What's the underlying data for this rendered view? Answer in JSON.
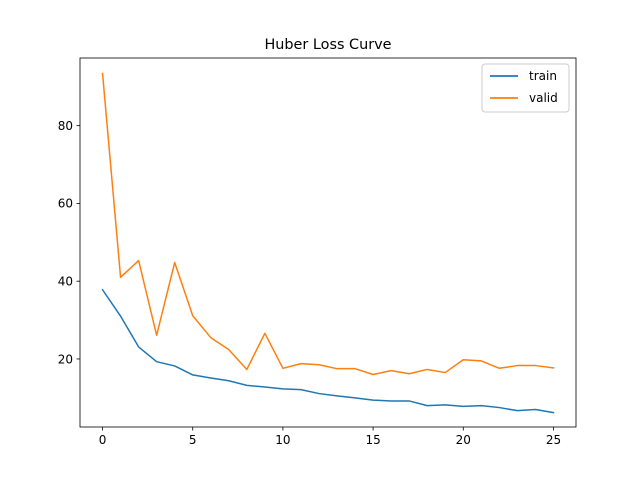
{
  "chart_data": {
    "type": "line",
    "title": "Huber Loss Curve",
    "xlabel": "",
    "ylabel": "",
    "xlim": [
      -1.25,
      26.25
    ],
    "ylim": [
      2.5,
      97.4
    ],
    "xticks": [
      0,
      5,
      10,
      15,
      20,
      25
    ],
    "yticks": [
      20,
      40,
      60,
      80
    ],
    "grid": false,
    "legend_position": "top-right",
    "x": [
      0,
      1,
      2,
      3,
      4,
      5,
      6,
      7,
      8,
      9,
      10,
      11,
      12,
      13,
      14,
      15,
      16,
      17,
      18,
      19,
      20,
      21,
      22,
      23,
      24,
      25
    ],
    "series": [
      {
        "name": "train",
        "color": "#1f77b4",
        "values": [
          37.8,
          31.0,
          23.1,
          19.3,
          18.2,
          15.9,
          15.1,
          14.4,
          13.2,
          12.8,
          12.3,
          12.1,
          11.1,
          10.5,
          10.0,
          9.4,
          9.2,
          9.2,
          8.0,
          8.2,
          7.8,
          8.0,
          7.5,
          6.7,
          7.0,
          6.2
        ]
      },
      {
        "name": "valid",
        "color": "#ff7f0e",
        "values": [
          93.4,
          41.0,
          45.3,
          26.1,
          44.8,
          31.1,
          25.5,
          22.4,
          17.3,
          26.6,
          17.6,
          18.8,
          18.5,
          17.5,
          17.5,
          16.0,
          17.0,
          16.2,
          17.3,
          16.5,
          19.8,
          19.5,
          17.6,
          18.3,
          18.3,
          17.7
        ]
      }
    ]
  }
}
